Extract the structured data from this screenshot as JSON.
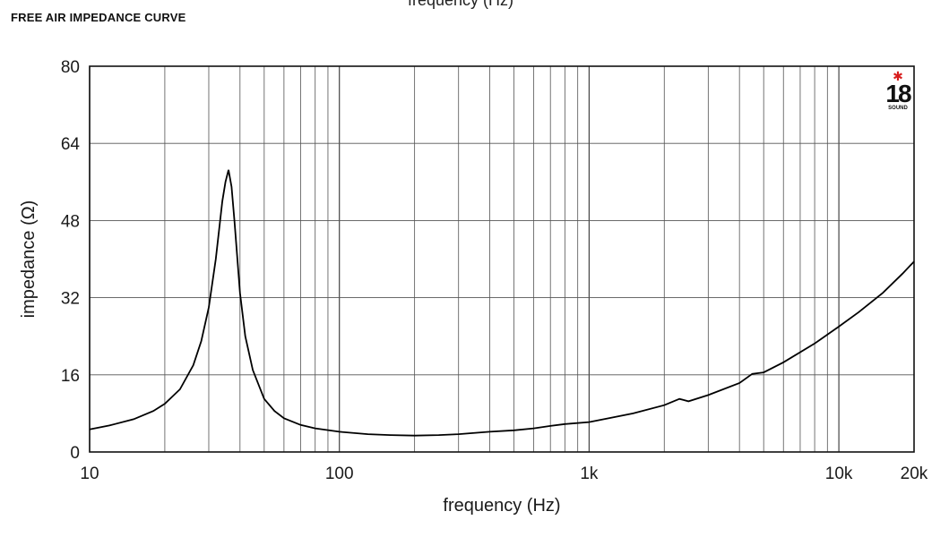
{
  "header": {
    "top_clip": "frequency (Hz)",
    "title": "FREE AIR IMPEDANCE CURVE"
  },
  "logo": {
    "number": "18",
    "tagline": "",
    "brand": "SOUND"
  },
  "chart_data": {
    "type": "line",
    "title": "FREE AIR IMPEDANCE CURVE",
    "xlabel": "frequency (Hz)",
    "ylabel": "impedance (Ω)",
    "xscale": "log",
    "xlim": [
      10,
      20000
    ],
    "ylim": [
      0,
      80
    ],
    "grid": true,
    "x_ticks": [
      {
        "value": 10,
        "label": "10"
      },
      {
        "value": 100,
        "label": "100"
      },
      {
        "value": 1000,
        "label": "1k"
      },
      {
        "value": 10000,
        "label": "10k"
      },
      {
        "value": 20000,
        "label": "20k"
      }
    ],
    "y_ticks": [
      {
        "value": 0,
        "label": "0"
      },
      {
        "value": 16,
        "label": "16"
      },
      {
        "value": 32,
        "label": "32"
      },
      {
        "value": 48,
        "label": "48"
      },
      {
        "value": 64,
        "label": "64"
      },
      {
        "value": 80,
        "label": "80"
      }
    ],
    "series": [
      {
        "color": "#000000",
        "x": [
          10,
          12,
          15,
          18,
          20,
          23,
          26,
          28,
          30,
          32,
          34,
          35,
          36,
          37,
          38,
          40,
          42,
          45,
          50,
          55,
          60,
          70,
          80,
          100,
          130,
          160,
          200,
          250,
          300,
          400,
          500,
          600,
          700,
          800,
          1000,
          1200,
          1500,
          2000,
          2300,
          2500,
          3000,
          4000,
          4500,
          5000,
          6000,
          8000,
          10000,
          12000,
          15000,
          18000,
          20000
        ],
        "y": [
          4.7,
          5.5,
          6.8,
          8.5,
          10,
          13,
          18,
          23,
          30,
          40,
          52,
          56,
          58.5,
          55,
          48,
          33,
          24,
          17,
          11,
          8.5,
          7,
          5.6,
          4.9,
          4.2,
          3.7,
          3.5,
          3.4,
          3.5,
          3.7,
          4.2,
          4.5,
          4.9,
          5.4,
          5.8,
          6.2,
          7,
          8,
          9.7,
          11,
          10.5,
          11.8,
          14.3,
          16.2,
          16.5,
          18.6,
          22.5,
          26,
          29,
          33,
          37,
          39.5
        ]
      }
    ]
  }
}
